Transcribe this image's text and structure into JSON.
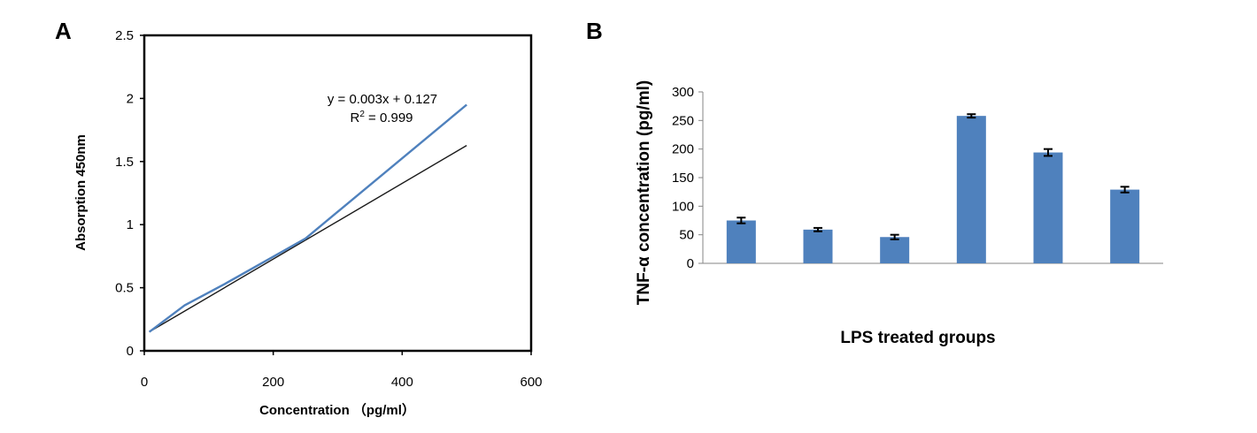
{
  "chart_data": [
    {
      "panel_label": "A",
      "type": "line",
      "xlabel": "Concentration （pg/ml）",
      "ylabel": "Absorption 450nm",
      "xlim": [
        0,
        600
      ],
      "ylim": [
        0,
        2.5
      ],
      "xticks": [
        "0",
        "200",
        "400",
        "600"
      ],
      "yticks": [
        "0",
        "0.5",
        "1",
        "1.5",
        "2",
        "2.5"
      ],
      "grid": false,
      "series": [
        {
          "color": "#4F81BD",
          "x": [
            7.8,
            15.6,
            31.25,
            62.5,
            125,
            250,
            500
          ],
          "y": [
            0.15,
            0.18,
            0.24,
            0.36,
            0.53,
            0.89,
            1.95
          ]
        }
      ],
      "trendline": {
        "color": "#1a1a1a",
        "slope": 0.003,
        "intercept": 0.127,
        "x_range": [
          7.8,
          500
        ],
        "equation": "y = 0.003x + 0.127",
        "r2_label": "R",
        "r2_sup": "2",
        "r2_value": " = 0.999"
      }
    },
    {
      "panel_label": "B",
      "type": "bar",
      "xlabel": "LPS treated groups",
      "ylabel": "TNF-α concentration (pg/ml)",
      "ylim": [
        0,
        300
      ],
      "yticks": [
        "0",
        "50",
        "100",
        "150",
        "200",
        "250",
        "300"
      ],
      "grid": false,
      "bar_color": "#4F81BD",
      "values": [
        75,
        59,
        46,
        258,
        194,
        129
      ],
      "errors": [
        5,
        3,
        4,
        3,
        6,
        5
      ]
    }
  ]
}
